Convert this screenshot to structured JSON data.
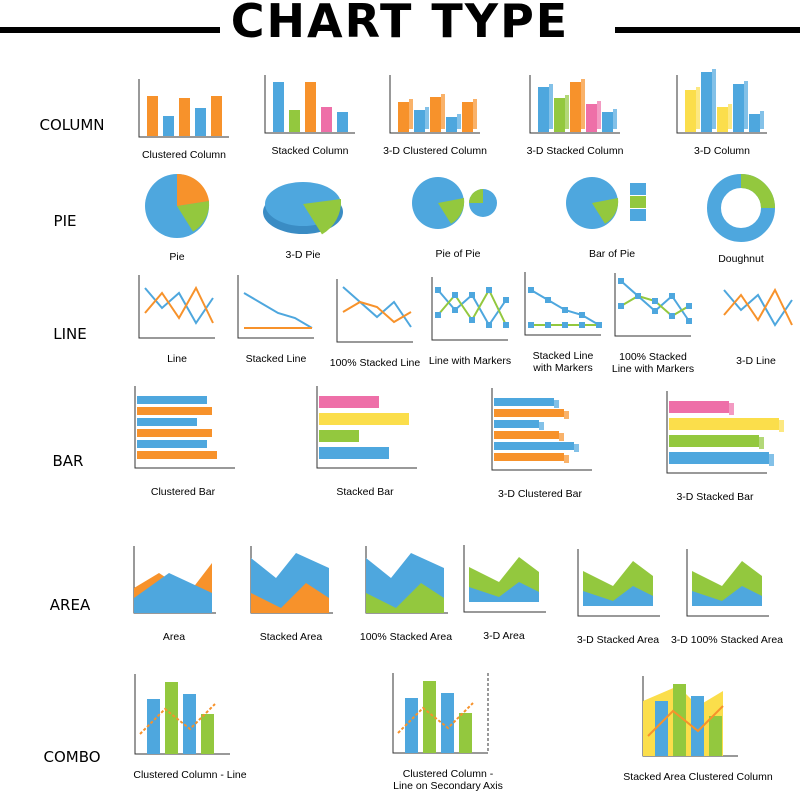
{
  "title": "CHART TYPE",
  "rows": [
    {
      "label": "COLUMN",
      "items": [
        "Clustered Column",
        "Stacked Column",
        "3-D Clustered Column",
        "3-D Stacked Column",
        "3-D Column"
      ]
    },
    {
      "label": "PIE",
      "items": [
        "Pie",
        "3-D Pie",
        "Pie of Pie",
        "Bar of Pie",
        "Doughnut"
      ]
    },
    {
      "label": "LINE",
      "items": [
        "Line",
        "Stacked Line",
        "100% Stacked Line",
        "Line with Markers",
        "Stacked Line with Markers",
        "100% Stacked Line with Markers",
        "3-D Line"
      ]
    },
    {
      "label": "BAR",
      "items": [
        "Clustered Bar",
        "Stacked Bar",
        "3-D Clustered  Bar",
        "3-D Stacked Bar"
      ]
    },
    {
      "label": "AREA",
      "items": [
        "Area",
        "Stacked Area",
        "100% Stacked Area",
        "3-D Area",
        "3-D Stacked Area",
        "3-D 100% Stacked Area"
      ]
    },
    {
      "label": "COMBO",
      "items": [
        "Clustered Column - Line",
        "Clustered Column - Line on Secondary Axis",
        "Stacked Area Clustered Column"
      ]
    }
  ]
}
